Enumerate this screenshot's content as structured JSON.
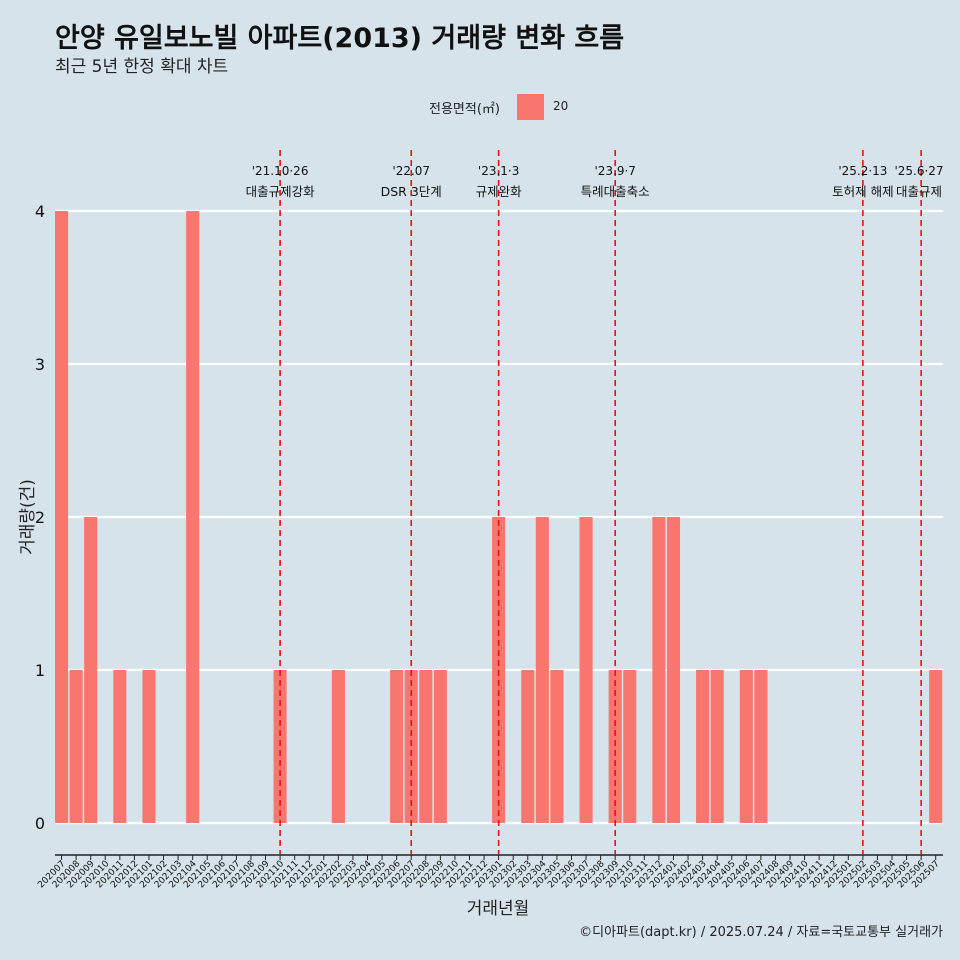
{
  "title": "안양 유일보노빌 아파트(2013) 거래량 변화 흐름",
  "subtitle": "최근 5년 한정 확대 차트",
  "legend": {
    "title": "전용면적(㎡)",
    "items": [
      {
        "label": "20",
        "color": "#f8766d"
      }
    ]
  },
  "credit": "©디아파트(dapt.kr) / 2025.07.24 / 자료=국토교통부 실거래가",
  "chart_data": {
    "type": "bar",
    "xlabel": "거래년월",
    "ylabel": "거래량(건)",
    "ylim": [
      0,
      4
    ],
    "yticks": [
      0,
      1,
      2,
      3,
      4
    ],
    "grid": true,
    "legend_position": "top",
    "bar_color": "#f8766d",
    "categories": [
      "202007",
      "202008",
      "202009",
      "202010",
      "202011",
      "202012",
      "202101",
      "202102",
      "202103",
      "202104",
      "202105",
      "202106",
      "202107",
      "202108",
      "202109",
      "202110",
      "202111",
      "202112",
      "202201",
      "202202",
      "202203",
      "202204",
      "202205",
      "202206",
      "202207",
      "202208",
      "202209",
      "202210",
      "202211",
      "202212",
      "202301",
      "202302",
      "202303",
      "202304",
      "202305",
      "202306",
      "202307",
      "202308",
      "202309",
      "202310",
      "202311",
      "202312",
      "202401",
      "202402",
      "202403",
      "202404",
      "202405",
      "202406",
      "202407",
      "202408",
      "202409",
      "202410",
      "202411",
      "202412",
      "202501",
      "202502",
      "202503",
      "202504",
      "202505",
      "202506",
      "202507"
    ],
    "series": [
      {
        "name": "20",
        "values": [
          4,
          1,
          2,
          0,
          1,
          0,
          1,
          0,
          0,
          4,
          0,
          0,
          0,
          0,
          0,
          1,
          0,
          0,
          0,
          1,
          0,
          0,
          0,
          1,
          1,
          1,
          1,
          0,
          0,
          0,
          2,
          0,
          1,
          2,
          1,
          0,
          2,
          0,
          1,
          1,
          0,
          2,
          2,
          0,
          1,
          1,
          0,
          1,
          1,
          0,
          0,
          0,
          0,
          0,
          0,
          0,
          0,
          0,
          0,
          0,
          1
        ]
      }
    ],
    "events": [
      {
        "date": "'21.10·26",
        "label": "대출규제강화",
        "position": "202110"
      },
      {
        "date": "'22.07",
        "label": "DSR 3단계",
        "position": "202207"
      },
      {
        "date": "'23.1·3",
        "label": "규제완화",
        "position": "202301"
      },
      {
        "date": "'23.9·7",
        "label": "특례대출축소",
        "position": "202309"
      },
      {
        "date": "'25.2·13",
        "label": "토허제 해제",
        "position": "202502"
      },
      {
        "date": "'25.6·27",
        "label": "대출규제",
        "position": "202506"
      }
    ]
  }
}
